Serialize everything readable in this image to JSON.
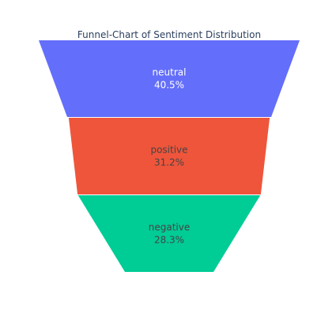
{
  "chart_data": {
    "type": "funnel",
    "title": "Funnel-Chart of Sentiment Distribution",
    "categories": [
      "neutral",
      "positive",
      "negative"
    ],
    "values": [
      40.5,
      31.2,
      28.3
    ],
    "value_labels": [
      "40.5%",
      "31.2%",
      "28.3%"
    ],
    "colors": [
      "#636efa",
      "#ef553b",
      "#00cc96"
    ],
    "label_colors": [
      "#ffffff",
      "#444444",
      "#444444"
    ]
  }
}
